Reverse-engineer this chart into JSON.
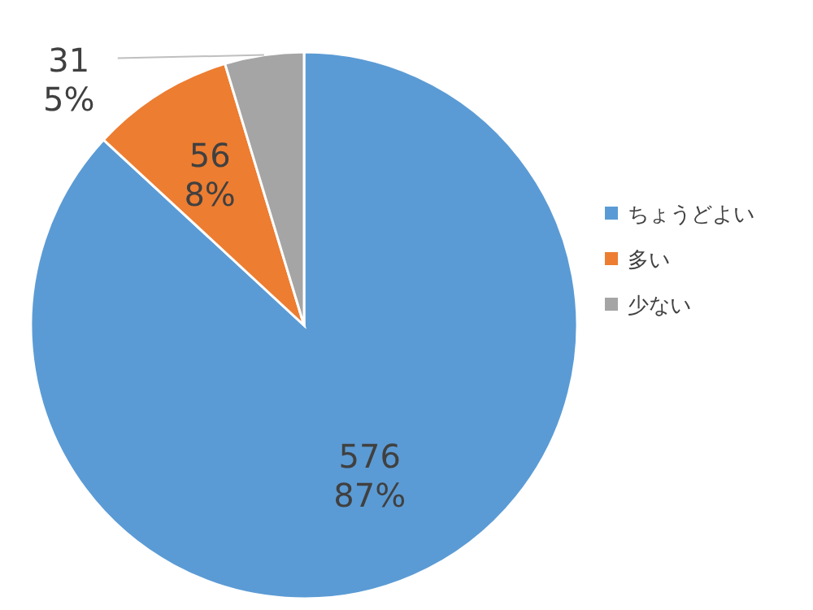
{
  "chart_data": {
    "type": "pie",
    "categories": [
      "ちょうどよい",
      "多い",
      "少ない"
    ],
    "values": [
      576,
      56,
      31
    ],
    "colors": [
      "#5b9bd5",
      "#ed7d31",
      "#a5a5a5"
    ],
    "value_labels": [
      "576\n87%",
      "56\n8%",
      "31\n5%"
    ],
    "legend": "right"
  }
}
